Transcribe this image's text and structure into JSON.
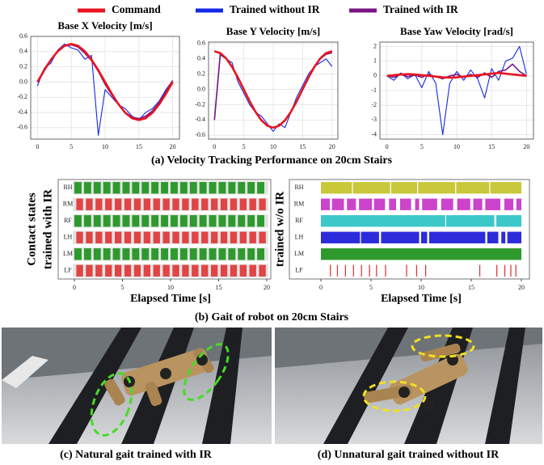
{
  "chart_data": [
    {
      "type": "line",
      "title": "Base X Velocity [m/s]",
      "x": [
        0,
        1,
        2,
        3,
        4,
        5,
        6,
        7,
        8,
        9,
        10,
        11,
        12,
        13,
        14,
        15,
        16,
        17,
        18,
        19,
        20
      ],
      "series": [
        {
          "name": "Command",
          "color": "#e8141e",
          "values": [
            0,
            0.155,
            0.294,
            0.405,
            0.476,
            0.5,
            0.476,
            0.405,
            0.294,
            0.155,
            0,
            -0.155,
            -0.294,
            -0.405,
            -0.476,
            -0.5,
            -0.476,
            -0.405,
            -0.294,
            -0.155,
            0
          ]
        },
        {
          "name": "Trained without IR",
          "color": "#1428e6",
          "values": [
            -0.05,
            0.18,
            0.25,
            0.42,
            0.5,
            0.45,
            0.42,
            0.3,
            0.35,
            -0.7,
            -0.1,
            -0.2,
            -0.3,
            -0.35,
            -0.45,
            -0.5,
            -0.4,
            -0.35,
            -0.25,
            -0.1,
            0.02
          ]
        },
        {
          "name": "Trained with IR",
          "color": "#7a1486",
          "values": [
            0,
            0.17,
            0.3,
            0.4,
            0.47,
            0.49,
            0.46,
            0.38,
            0.28,
            0.14,
            -0.03,
            -0.17,
            -0.3,
            -0.4,
            -0.46,
            -0.48,
            -0.45,
            -0.38,
            -0.27,
            -0.12,
            0.02
          ]
        }
      ],
      "xlim": [
        -1,
        21
      ],
      "xticks": [
        0,
        5,
        10,
        15,
        20
      ],
      "ylim": [
        -0.75,
        0.6
      ],
      "yticks": [
        -0.6,
        -0.4,
        -0.2,
        {
          "value": 0,
          "label": "0.0"
        },
        0.2,
        0.4,
        0.6
      ],
      "grid": true
    },
    {
      "type": "line",
      "title": "Base Y Velocity [m/s]",
      "x": [
        0,
        1,
        2,
        3,
        4,
        5,
        6,
        7,
        8,
        9,
        10,
        11,
        12,
        13,
        14,
        15,
        16,
        17,
        18,
        19,
        20
      ],
      "series": [
        {
          "color": "#e8141e",
          "values": [
            0.5,
            0.476,
            0.405,
            0.294,
            0.155,
            0,
            -0.155,
            -0.294,
            -0.405,
            -0.476,
            -0.5,
            -0.476,
            -0.405,
            -0.294,
            -0.155,
            0,
            0.155,
            0.294,
            0.405,
            0.476,
            0.5
          ]
        },
        {
          "color": "#1428e6",
          "values": [
            -0.4,
            0.45,
            0.4,
            0.35,
            0.1,
            -0.05,
            -0.2,
            -0.3,
            -0.35,
            -0.45,
            -0.55,
            -0.45,
            -0.5,
            -0.3,
            -0.1,
            0.05,
            0.2,
            0.3,
            0.35,
            0.4,
            0.3
          ]
        },
        {
          "color": "#7a1486",
          "values": [
            -0.4,
            0.47,
            0.4,
            0.3,
            0.16,
            0,
            -0.16,
            -0.3,
            -0.4,
            -0.47,
            -0.5,
            -0.47,
            -0.4,
            -0.3,
            -0.15,
            0.01,
            0.16,
            0.3,
            0.4,
            0.46,
            0.48
          ]
        }
      ],
      "xlim": [
        -1,
        21
      ],
      "xticks": [
        0,
        5,
        10,
        15,
        20
      ],
      "ylim": [
        -0.65,
        0.62
      ],
      "yticks": [
        -0.6,
        -0.4,
        -0.2,
        {
          "value": 0,
          "label": "0.0"
        },
        0.2,
        0.4,
        0.6
      ],
      "grid": true
    },
    {
      "type": "line",
      "title": "Base Yaw Velocity [rad/s]",
      "x": [
        0,
        1,
        2,
        3,
        4,
        5,
        6,
        7,
        8,
        9,
        10,
        11,
        12,
        13,
        14,
        15,
        16,
        17,
        18,
        19,
        20
      ],
      "series": [
        {
          "color": "#e8141e",
          "values": [
            0,
            0.05,
            0.1,
            0.12,
            0.1,
            0.05,
            0,
            -0.05,
            -0.1,
            -0.12,
            -0.1,
            -0.05,
            0,
            0.05,
            0.1,
            0.15,
            0.2,
            0.15,
            0.1,
            0.05,
            0
          ]
        },
        {
          "color": "#1428e6",
          "values": [
            0,
            -0.3,
            0.2,
            -0.2,
            0.1,
            -0.8,
            0.3,
            -0.5,
            -4.0,
            -0.5,
            0.3,
            -0.3,
            0.4,
            -0.2,
            -1.5,
            0.5,
            -0.3,
            1.0,
            1.2,
            2.0,
            0.1
          ]
        },
        {
          "color": "#7a1486",
          "values": [
            0,
            -0.1,
            0.1,
            -0.05,
            0.05,
            -0.1,
            0.1,
            -0.05,
            -0.2,
            0,
            0.1,
            -0.1,
            0.1,
            -0.1,
            0.2,
            -0.1,
            0.3,
            0.4,
            0.8,
            0.3,
            0
          ]
        }
      ],
      "xlim": [
        -1,
        21
      ],
      "xticks": [
        0,
        5,
        10,
        15,
        20
      ],
      "ylim": [
        -4.3,
        2.3
      ],
      "yticks": [
        -4,
        -3,
        -2,
        -1,
        0,
        1,
        2
      ],
      "grid": true
    },
    {
      "type": "timeline",
      "ylabel": [
        "Contact states",
        "trained with IR"
      ],
      "xlabel": "Elapsed Time [s]",
      "xlim": [
        0,
        20
      ],
      "xticks": [
        0,
        5,
        10,
        15,
        20
      ],
      "rows": [
        {
          "name": "RH",
          "color": "#2e9a2e",
          "contacts": [
            [
              0,
              0.75
            ],
            [
              1,
              1.75
            ],
            [
              2,
              2.75
            ],
            [
              3,
              3.75
            ],
            [
              4,
              4.75
            ],
            [
              5,
              5.75
            ],
            [
              6,
              6.75
            ],
            [
              7,
              7.75
            ],
            [
              8,
              8.75
            ],
            [
              9,
              9.75
            ],
            [
              10,
              10.75
            ],
            [
              11,
              11.75
            ],
            [
              12,
              12.75
            ],
            [
              13,
              13.75
            ],
            [
              14,
              14.75
            ],
            [
              15,
              15.75
            ],
            [
              16,
              16.75
            ],
            [
              17,
              17.75
            ],
            [
              18,
              18.75
            ],
            [
              19,
              19.75
            ]
          ]
        },
        {
          "name": "RM",
          "color": "#e04444",
          "contacts": [
            [
              0.2,
              0.9
            ],
            [
              1.2,
              1.9
            ],
            [
              2.2,
              2.9
            ],
            [
              3.2,
              3.9
            ],
            [
              4.2,
              4.9
            ],
            [
              5.2,
              5.9
            ],
            [
              6.2,
              6.9
            ],
            [
              7.2,
              7.9
            ],
            [
              8.2,
              8.9
            ],
            [
              9.2,
              9.9
            ],
            [
              10.2,
              10.9
            ],
            [
              11.2,
              11.9
            ],
            [
              12.2,
              12.9
            ],
            [
              13.2,
              13.9
            ],
            [
              14.2,
              14.9
            ],
            [
              15.2,
              15.9
            ],
            [
              16.2,
              16.9
            ],
            [
              17.2,
              17.9
            ],
            [
              18.2,
              18.9
            ],
            [
              19.2,
              19.9
            ]
          ]
        },
        {
          "name": "RF",
          "color": "#2e9a2e",
          "contacts": [
            [
              0,
              0.75
            ],
            [
              1,
              1.75
            ],
            [
              2,
              2.75
            ],
            [
              3,
              3.75
            ],
            [
              4,
              4.75
            ],
            [
              5,
              5.75
            ],
            [
              6,
              6.75
            ],
            [
              7,
              7.75
            ],
            [
              8,
              8.75
            ],
            [
              9,
              9.75
            ],
            [
              10,
              10.75
            ],
            [
              11,
              11.75
            ],
            [
              12,
              12.75
            ],
            [
              13,
              13.75
            ],
            [
              14,
              14.75
            ],
            [
              15,
              15.75
            ],
            [
              16,
              16.75
            ],
            [
              17,
              17.75
            ],
            [
              18,
              18.75
            ],
            [
              19,
              19.75
            ]
          ]
        },
        {
          "name": "LH",
          "color": "#e04444",
          "contacts": [
            [
              0.2,
              0.9
            ],
            [
              1.2,
              1.9
            ],
            [
              2.2,
              2.9
            ],
            [
              3.2,
              3.9
            ],
            [
              4.2,
              4.9
            ],
            [
              5.2,
              5.9
            ],
            [
              6.2,
              6.9
            ],
            [
              7.2,
              7.9
            ],
            [
              8.2,
              8.9
            ],
            [
              9.2,
              9.9
            ],
            [
              10.2,
              10.9
            ],
            [
              11.2,
              11.9
            ],
            [
              12.2,
              12.9
            ],
            [
              13.2,
              13.9
            ],
            [
              14.2,
              14.9
            ],
            [
              15.2,
              15.9
            ],
            [
              16.2,
              16.9
            ],
            [
              17.2,
              17.9
            ],
            [
              18.2,
              18.9
            ],
            [
              19.2,
              19.9
            ]
          ]
        },
        {
          "name": "LM",
          "color": "#2e9a2e",
          "contacts": [
            [
              0,
              0.75
            ],
            [
              1,
              1.75
            ],
            [
              2,
              2.75
            ],
            [
              3,
              3.75
            ],
            [
              4,
              4.75
            ],
            [
              5,
              5.75
            ],
            [
              6,
              6.75
            ],
            [
              7,
              7.75
            ],
            [
              8,
              8.75
            ],
            [
              9,
              9.75
            ],
            [
              10,
              10.75
            ],
            [
              11,
              11.75
            ],
            [
              12,
              12.75
            ],
            [
              13,
              13.75
            ],
            [
              14,
              14.75
            ],
            [
              15,
              15.75
            ],
            [
              16,
              16.75
            ],
            [
              17,
              17.75
            ],
            [
              18,
              18.75
            ],
            [
              19,
              19.75
            ]
          ]
        },
        {
          "name": "LF",
          "color": "#e04444",
          "contacts": [
            [
              0.2,
              0.9
            ],
            [
              1.2,
              1.9
            ],
            [
              2.2,
              2.9
            ],
            [
              3.2,
              3.9
            ],
            [
              4.2,
              4.9
            ],
            [
              5.2,
              5.9
            ],
            [
              6.2,
              6.9
            ],
            [
              7.2,
              7.9
            ],
            [
              8.2,
              8.9
            ],
            [
              9.2,
              9.9
            ],
            [
              10.2,
              10.9
            ],
            [
              11.2,
              11.9
            ],
            [
              12.2,
              12.9
            ],
            [
              13.2,
              13.9
            ],
            [
              14.2,
              14.9
            ],
            [
              15.2,
              15.9
            ],
            [
              16.2,
              16.9
            ],
            [
              17.2,
              17.9
            ],
            [
              18.2,
              18.9
            ],
            [
              19.2,
              19.9
            ]
          ]
        }
      ]
    },
    {
      "type": "timeline",
      "ylabel": [
        "trained w/o IR"
      ],
      "xlabel": "Elapsed Time [s]",
      "xlim": [
        0,
        20
      ],
      "xticks": [
        0,
        5,
        10,
        15,
        20
      ],
      "rows": [
        {
          "name": "RH",
          "color": "#c8c83a",
          "contacts": [
            [
              0,
              3.1
            ],
            [
              3.2,
              6.9
            ],
            [
              7,
              9.6
            ],
            [
              9.7,
              13.4
            ],
            [
              13.5,
              16.8
            ],
            [
              16.9,
              20
            ]
          ]
        },
        {
          "name": "RM",
          "color": "#cc44cc",
          "contacts": [
            [
              0,
              0.9
            ],
            [
              1.1,
              2.3
            ],
            [
              2.6,
              3.5
            ],
            [
              3.8,
              5.1
            ],
            [
              5.3,
              6.4
            ],
            [
              6.8,
              7.5
            ],
            [
              7.9,
              9
            ],
            [
              9.4,
              9.8
            ],
            [
              10.1,
              11.6
            ],
            [
              12,
              13.2
            ],
            [
              13.6,
              14.9
            ],
            [
              15.2,
              16.1
            ],
            [
              16.4,
              17.9
            ],
            [
              18.3,
              19.2
            ],
            [
              19.5,
              20
            ]
          ]
        },
        {
          "name": "RF",
          "color": "#3cc8c8",
          "contacts": [
            [
              0,
              12.4
            ],
            [
              12.5,
              17.3
            ],
            [
              17.5,
              20
            ]
          ]
        },
        {
          "name": "LH",
          "color": "#2c2cdc",
          "contacts": [
            [
              0,
              3.9
            ],
            [
              4,
              5.8
            ],
            [
              6,
              9.8
            ],
            [
              10,
              10.6
            ],
            [
              10.8,
              16.4
            ],
            [
              16.6,
              17.7
            ],
            [
              18,
              18.4
            ],
            [
              18.6,
              20
            ]
          ]
        },
        {
          "name": "LM",
          "color": "#2e9a2e",
          "contacts": [
            [
              0,
              20
            ]
          ]
        },
        {
          "name": "LF",
          "color": "#dd3333",
          "contacts": [
            [
              0.9,
              1
            ],
            [
              1.6,
              1.7
            ],
            [
              2.4,
              2.5
            ],
            [
              3.2,
              3.3
            ],
            [
              4,
              4.1
            ],
            [
              4.8,
              4.9
            ],
            [
              5.5,
              5.6
            ],
            [
              6.4,
              6.5
            ],
            [
              8.5,
              8.6
            ],
            [
              9.5,
              9.6
            ],
            [
              10.4,
              10.5
            ],
            [
              15.8,
              15.9
            ],
            [
              17.5,
              17.6
            ],
            [
              18.3,
              18.4
            ],
            [
              18.9,
              19
            ],
            [
              19.4,
              19.5
            ]
          ]
        }
      ]
    }
  ],
  "captions": {
    "a": "(a) Velocity Tracking Performance on 20cm Stairs",
    "b": "(b) Gait of robot on 20cm Stairs",
    "c": "(c) Natural gait trained with IR",
    "d": "(d) Unnatural gait trained without IR"
  }
}
